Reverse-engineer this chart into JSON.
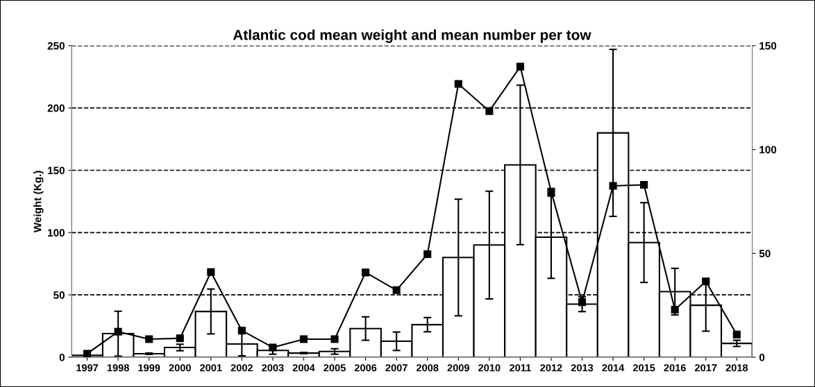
{
  "chart_data": {
    "type": "bar",
    "title": "Atlantic cod mean weight and mean number per tow",
    "ylabel": "Weight (Kg.)",
    "categories": [
      "1997",
      "1998",
      "1999",
      "2000",
      "2001",
      "2002",
      "2003",
      "2004",
      "2005",
      "2006",
      "2007",
      "2008",
      "2009",
      "2010",
      "2011",
      "2012",
      "2013",
      "2014",
      "2015",
      "2016",
      "2017",
      "2018"
    ],
    "series": [
      {
        "color": "#ffffff",
        "values": [
          1.5,
          18.9,
          2.8,
          7.8,
          36.7,
          10.6,
          5.4,
          3.3,
          4.6,
          23,
          12.8,
          26.1,
          80,
          90,
          154.3,
          96.3,
          42.6,
          180,
          92,
          52.6,
          41.7,
          11.1
        ],
        "errors": [
          null,
          18,
          0.5,
          2.6,
          18,
          9.5,
          3,
          0.5,
          2.2,
          9.4,
          7.4,
          5.7,
          46.8,
          43.2,
          64,
          33,
          6,
          67,
          32,
          18.7,
          20.8,
          2.5
        ]
      },
      {
        "type": "line",
        "axis": "y2",
        "color": "#000000",
        "marker": "square",
        "line_style": "solid",
        "values": [
          1.7,
          12.3,
          8.7,
          9.1,
          41,
          12.8,
          4.7,
          8.7,
          8.7,
          40.8,
          32.3,
          49.6,
          131.6,
          118.5,
          139.9,
          79.7,
          26.5,
          82.5,
          83,
          22.9,
          36.5,
          10.9
        ]
      }
    ],
    "ylim": [
      0,
      250
    ],
    "yticks": [
      0,
      50,
      100,
      150,
      200,
      250
    ],
    "y2lim": [
      0,
      150
    ],
    "y2ticks": [
      0,
      50,
      100,
      150
    ],
    "grid": "y",
    "legend": false
  }
}
